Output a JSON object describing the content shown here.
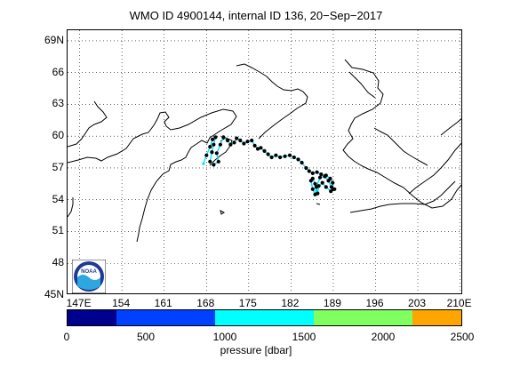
{
  "title": "WMO ID 4900144, internal ID 136, 20−Sep−2017",
  "lat_axis": {
    "range": [
      45,
      70
    ],
    "ticks": [
      {
        "value": 69,
        "label": "69N"
      },
      {
        "value": 66,
        "label": "66"
      },
      {
        "value": 63,
        "label": "63"
      },
      {
        "value": 60,
        "label": "60"
      },
      {
        "value": 57,
        "label": "57"
      },
      {
        "value": 54,
        "label": "54"
      },
      {
        "value": 51,
        "label": "51"
      },
      {
        "value": 48,
        "label": "48"
      },
      {
        "value": 45,
        "label": "45N"
      }
    ]
  },
  "lon_axis": {
    "range": [
      145,
      210.5
    ],
    "ticks": [
      {
        "value": 147,
        "label": "147E"
      },
      {
        "value": 154,
        "label": "154"
      },
      {
        "value": 161,
        "label": "161"
      },
      {
        "value": 168,
        "label": "168"
      },
      {
        "value": 175,
        "label": "175"
      },
      {
        "value": 182,
        "label": "182"
      },
      {
        "value": 189,
        "label": "189"
      },
      {
        "value": 196,
        "label": "196"
      },
      {
        "value": 203,
        "label": "203"
      },
      {
        "value": 210,
        "label": "210E"
      }
    ]
  },
  "colorbar": {
    "label": "pressure [dbar]",
    "range": [
      0,
      2500
    ],
    "segments": [
      {
        "from": 0,
        "to": 312,
        "color": "#00008f"
      },
      {
        "from": 312,
        "to": 937,
        "color": "#0040ff"
      },
      {
        "from": 937,
        "to": 1562,
        "color": "#00ffff"
      },
      {
        "from": 1562,
        "to": 2187,
        "color": "#80ff60"
      },
      {
        "from": 2187,
        "to": 2500,
        "color": "#ffa500"
      }
    ],
    "ticks": [
      {
        "value": 0,
        "label": "0"
      },
      {
        "value": 500,
        "label": "500"
      },
      {
        "value": 1000,
        "label": "1000"
      },
      {
        "value": 1500,
        "label": "1500"
      },
      {
        "value": 2000,
        "label": "2000"
      },
      {
        "value": 2500,
        "label": "2500"
      }
    ]
  },
  "logo": {
    "name": "noaa-logo",
    "text": "NOAA"
  },
  "track_color": "#00e5ff",
  "point_color": "#000000",
  "track": [
    [
      167.5,
      57.4
    ],
    [
      168.0,
      58.2
    ],
    [
      168.6,
      59.0
    ],
    [
      169.0,
      59.7
    ],
    [
      169.5,
      59.9
    ],
    [
      169.2,
      59.2
    ],
    [
      168.9,
      58.5
    ],
    [
      168.6,
      57.6
    ],
    [
      169.2,
      57.3
    ],
    [
      170.0,
      57.6
    ],
    [
      169.7,
      58.4
    ],
    [
      170.3,
      59.2
    ],
    [
      170.8,
      59.9
    ],
    [
      171.5,
      59.6
    ],
    [
      172.0,
      59.2
    ],
    [
      172.6,
      59.4
    ],
    [
      173.0,
      59.8
    ],
    [
      173.6,
      59.6
    ],
    [
      174.2,
      59.3
    ],
    [
      174.8,
      59.5
    ],
    [
      175.5,
      59.6
    ],
    [
      176.0,
      59.1
    ],
    [
      176.5,
      58.8
    ],
    [
      177.0,
      58.9
    ],
    [
      177.6,
      58.6
    ],
    [
      178.2,
      58.3
    ],
    [
      178.8,
      58.0
    ],
    [
      179.5,
      58.2
    ],
    [
      180.2,
      58.0
    ],
    [
      181.0,
      58.1
    ],
    [
      181.8,
      58.2
    ],
    [
      182.5,
      58.0
    ],
    [
      183.2,
      57.8
    ],
    [
      183.8,
      57.5
    ],
    [
      184.5,
      57.0
    ],
    [
      185.0,
      56.7
    ],
    [
      185.6,
      56.5
    ],
    [
      186.3,
      56.6
    ],
    [
      187.0,
      56.4
    ],
    [
      187.8,
      56.3
    ],
    [
      188.5,
      56.0
    ],
    [
      188.9,
      55.6
    ],
    [
      189.0,
      55.0
    ],
    [
      188.6,
      54.8
    ],
    [
      187.8,
      55.2
    ],
    [
      187.2,
      55.6
    ],
    [
      186.6,
      55.3
    ],
    [
      186.4,
      54.6
    ],
    [
      186.0,
      55.5
    ],
    [
      185.6,
      56.0
    ],
    [
      185.3,
      55.8
    ],
    [
      185.6,
      55.0
    ],
    [
      186.0,
      54.5
    ],
    [
      186.2,
      55.2
    ],
    [
      186.8,
      56.1
    ],
    [
      187.6,
      56.2
    ],
    [
      188.2,
      55.8
    ],
    [
      188.7,
      55.2
    ],
    [
      189.2,
      55.0
    ]
  ]
}
